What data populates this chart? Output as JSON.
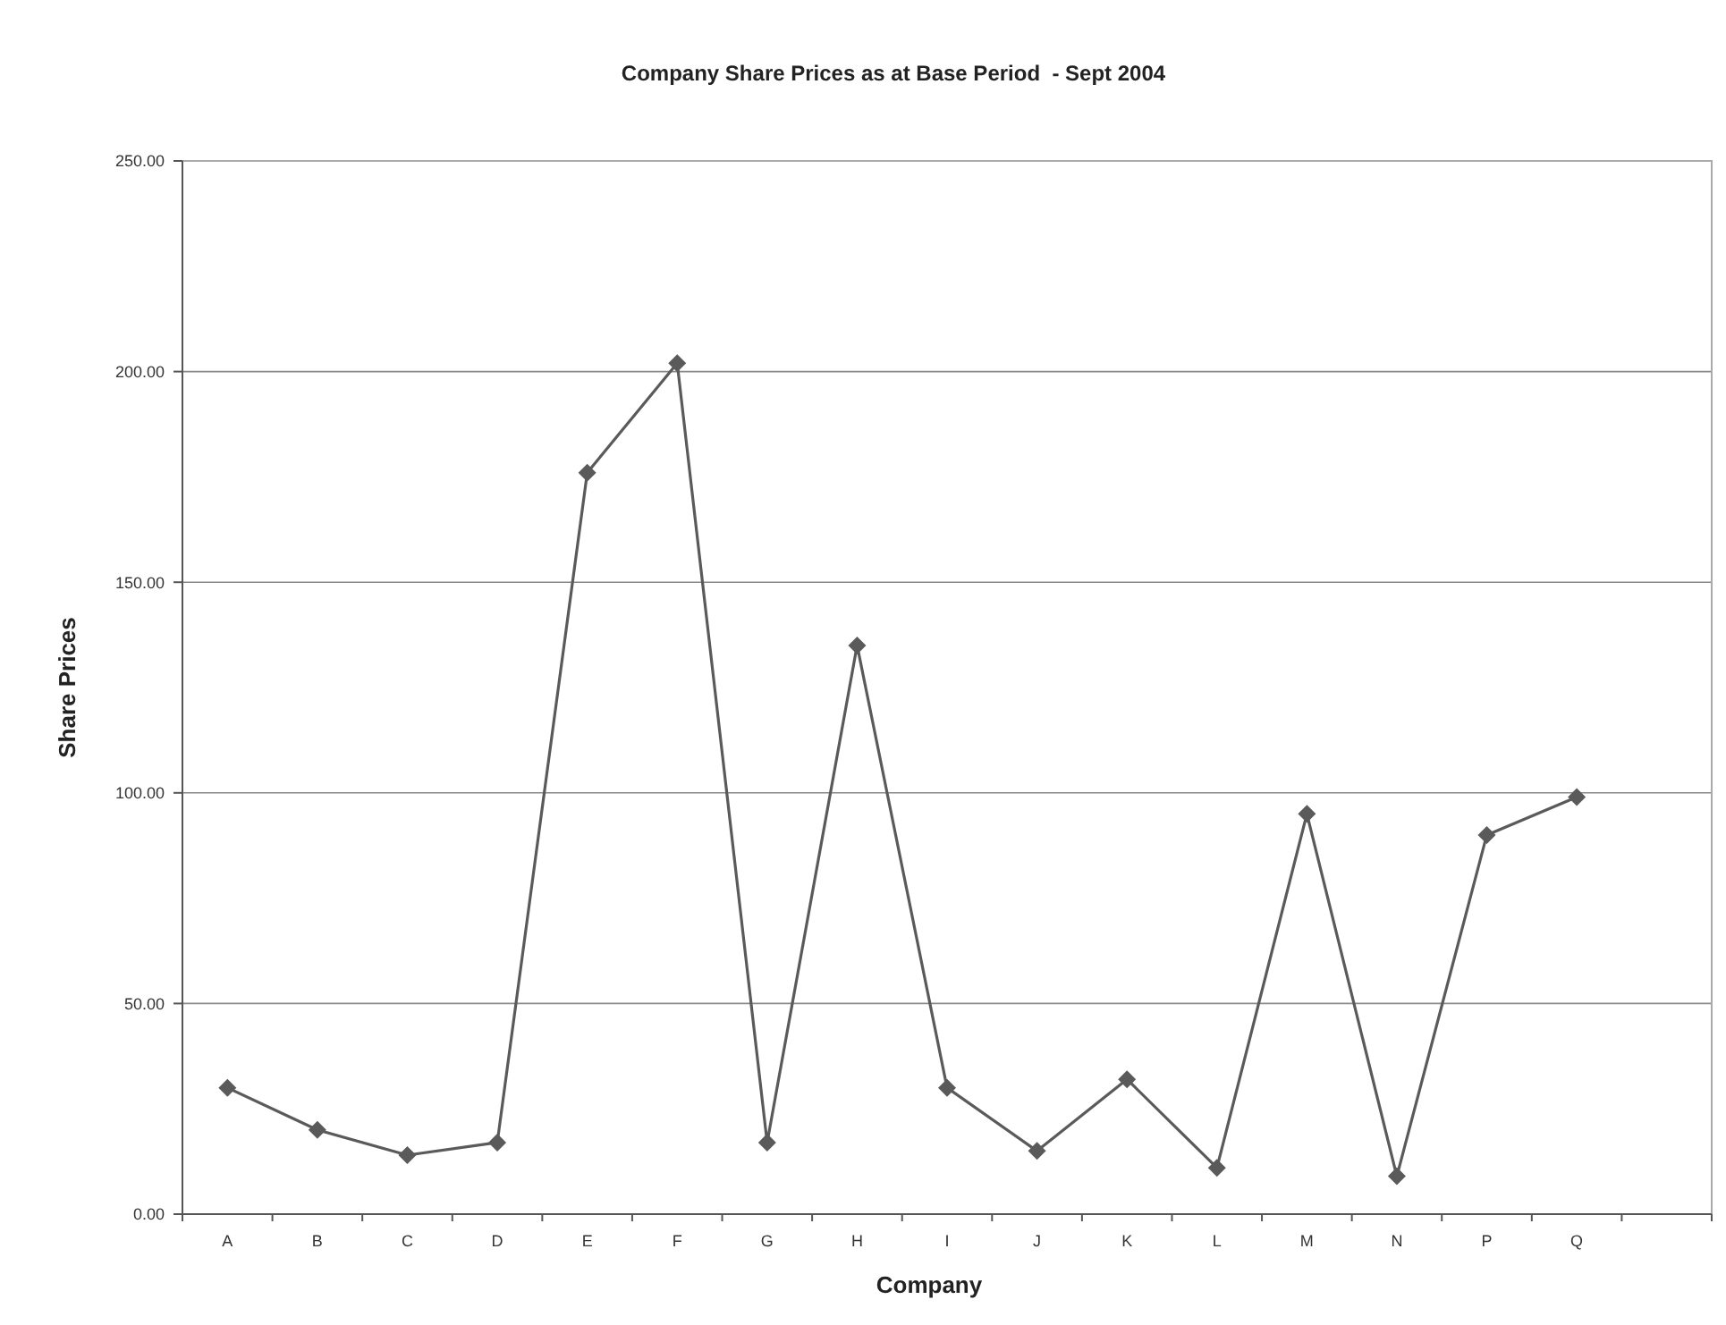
{
  "chart_data": {
    "type": "line",
    "title": "Company Share Prices as at Base Period  - Sept 2004",
    "xlabel": "Company",
    "ylabel": "Share Prices",
    "categories": [
      "A",
      "B",
      "C",
      "D",
      "E",
      "F",
      "G",
      "H",
      "I",
      "J",
      "K",
      "L",
      "M",
      "N",
      "P",
      "Q",
      null
    ],
    "series": [
      {
        "color": "#5a5a5a",
        "values": [
          30,
          20,
          14,
          17,
          176,
          202,
          17,
          135,
          30,
          15,
          32,
          11,
          95,
          9,
          90,
          99,
          null
        ]
      }
    ],
    "ylim": [
      0,
      250
    ],
    "yticks": [
      {
        "value": 0,
        "label": "0.00"
      },
      {
        "value": 50,
        "label": "50.00"
      },
      {
        "value": 100,
        "label": "100.00"
      },
      {
        "value": 150,
        "label": "150.00"
      },
      {
        "value": 200,
        "label": "200.00"
      },
      {
        "value": 250,
        "label": "250.00"
      }
    ],
    "grid": "y",
    "marker": "diamond",
    "line_style": "solid"
  }
}
